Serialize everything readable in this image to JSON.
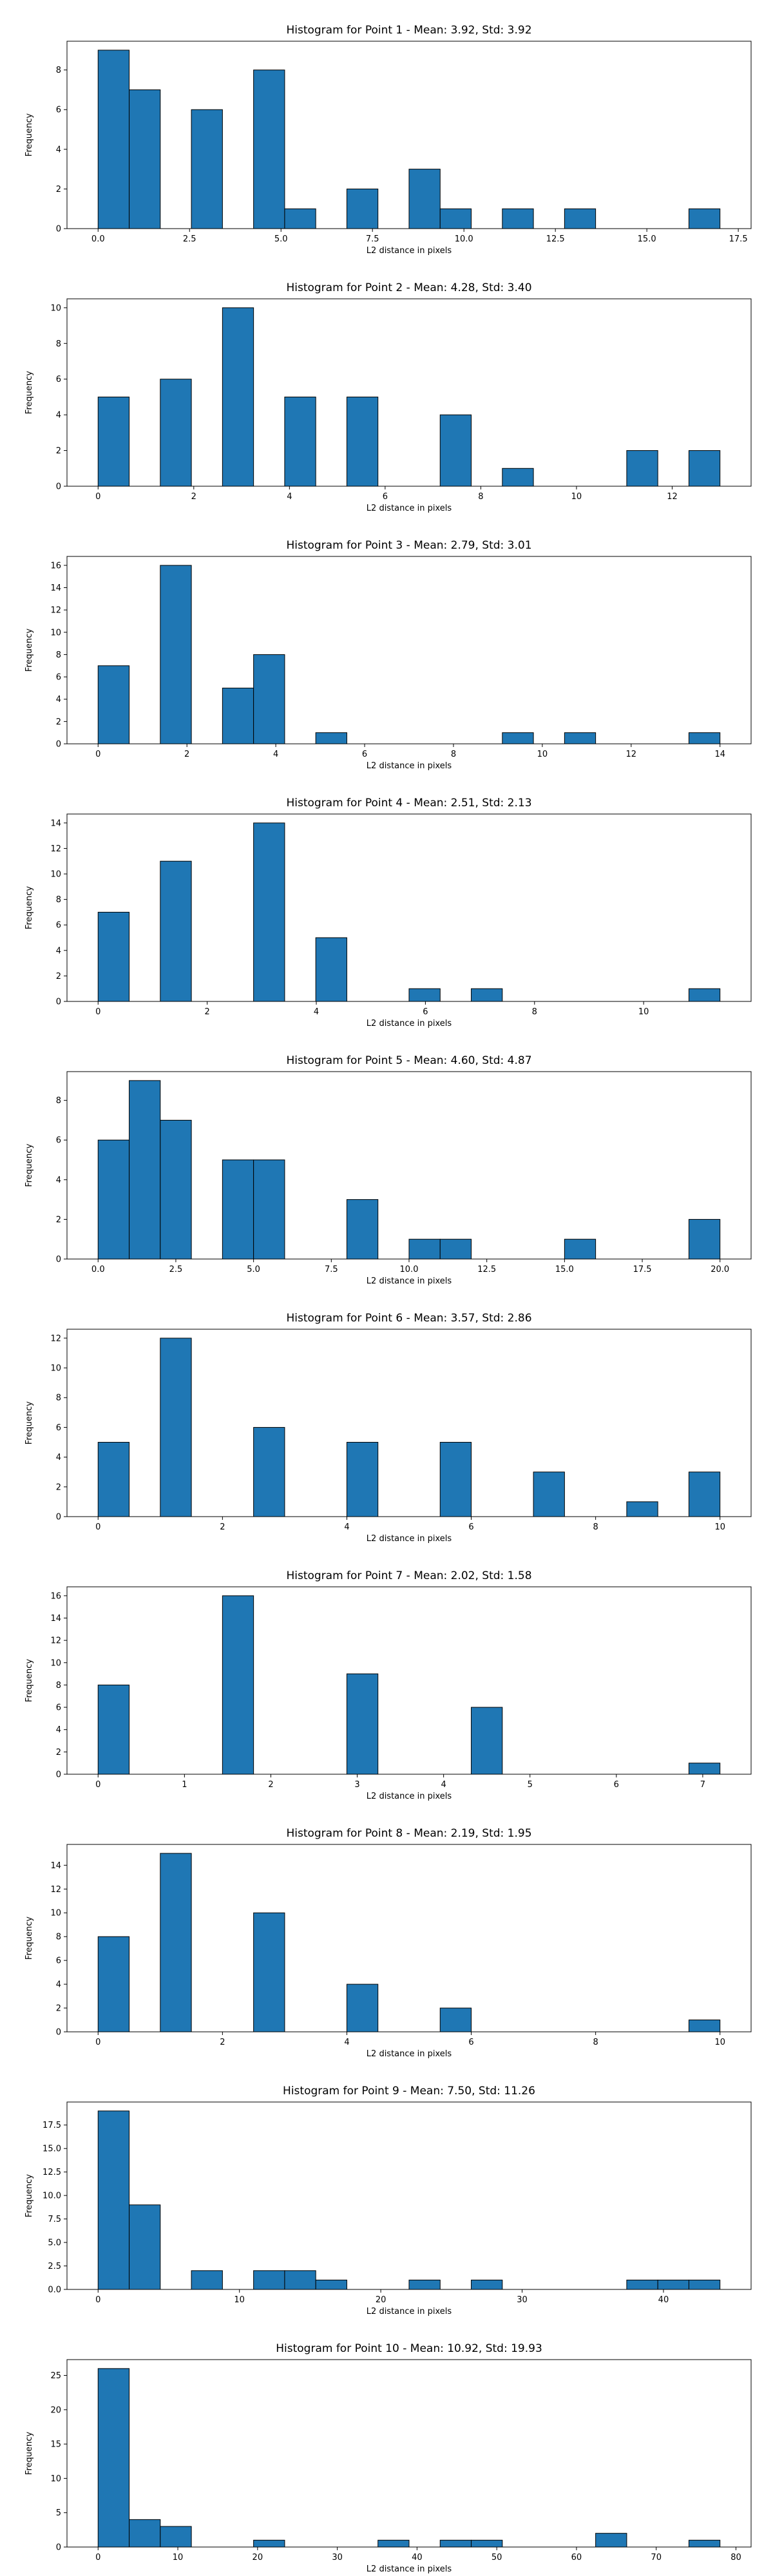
{
  "chart_data": [
    {
      "type": "bar",
      "title": "Histogram for Point 1 - Mean: 3.92, Std: 3.92",
      "xlabel": "L2 distance in pixels",
      "ylabel": "Frequency",
      "xlim": [
        -0.85,
        17.85
      ],
      "ylim": [
        0,
        9.45
      ],
      "xticks": [
        0.0,
        2.5,
        5.0,
        7.5,
        10.0,
        12.5,
        15.0,
        17.5
      ],
      "xtick_labels": [
        "0.0",
        "2.5",
        "5.0",
        "7.5",
        "10.0",
        "12.5",
        "15.0",
        "17.5"
      ],
      "yticks": [
        0,
        2,
        4,
        6,
        8
      ],
      "bins": [
        [
          0.0,
          0.85,
          9
        ],
        [
          0.85,
          1.7,
          7
        ],
        [
          1.7,
          2.55,
          0
        ],
        [
          2.55,
          3.4,
          6
        ],
        [
          3.4,
          4.25,
          0
        ],
        [
          4.25,
          5.1,
          8
        ],
        [
          5.1,
          5.95,
          1
        ],
        [
          5.95,
          6.8,
          0
        ],
        [
          6.8,
          7.65,
          2
        ],
        [
          7.65,
          8.5,
          0
        ],
        [
          8.5,
          9.35,
          3
        ],
        [
          9.35,
          10.2,
          1
        ],
        [
          10.2,
          11.05,
          0
        ],
        [
          11.05,
          11.9,
          1
        ],
        [
          11.9,
          12.75,
          0
        ],
        [
          12.75,
          13.6,
          1
        ],
        [
          13.6,
          14.45,
          0
        ],
        [
          14.45,
          15.3,
          0
        ],
        [
          15.3,
          16.15,
          0
        ],
        [
          16.15,
          17.0,
          1
        ]
      ]
    },
    {
      "type": "bar",
      "title": "Histogram for Point 2 - Mean: 4.28, Std: 3.40",
      "xlabel": "L2 distance in pixels",
      "ylabel": "Frequency",
      "xlim": [
        -0.65,
        13.65
      ],
      "ylim": [
        0,
        10.5
      ],
      "xticks": [
        0,
        2,
        4,
        6,
        8,
        10,
        12
      ],
      "xtick_labels": [
        "0",
        "2",
        "4",
        "6",
        "8",
        "10",
        "12"
      ],
      "yticks": [
        0,
        2,
        4,
        6,
        8,
        10
      ],
      "bins": [
        [
          0.0,
          0.65,
          5
        ],
        [
          0.65,
          1.3,
          0
        ],
        [
          1.3,
          1.95,
          6
        ],
        [
          1.95,
          2.6,
          0
        ],
        [
          2.6,
          3.25,
          10
        ],
        [
          3.25,
          3.9,
          0
        ],
        [
          3.9,
          4.55,
          5
        ],
        [
          4.55,
          5.2,
          0
        ],
        [
          5.2,
          5.85,
          5
        ],
        [
          5.85,
          6.5,
          0
        ],
        [
          6.5,
          7.15,
          0
        ],
        [
          7.15,
          7.8,
          4
        ],
        [
          7.8,
          8.45,
          0
        ],
        [
          8.45,
          9.1,
          1
        ],
        [
          9.1,
          9.75,
          0
        ],
        [
          9.75,
          10.4,
          0
        ],
        [
          10.4,
          11.05,
          0
        ],
        [
          11.05,
          11.7,
          2
        ],
        [
          11.7,
          12.35,
          0
        ],
        [
          12.35,
          13.0,
          2
        ]
      ]
    },
    {
      "type": "bar",
      "title": "Histogram for Point 3 - Mean: 2.79, Std: 3.01",
      "xlabel": "L2 distance in pixels",
      "ylabel": "Frequency",
      "xlim": [
        -0.7,
        14.7
      ],
      "ylim": [
        0,
        16.8
      ],
      "xticks": [
        0,
        2,
        4,
        6,
        8,
        10,
        12,
        14
      ],
      "xtick_labels": [
        "0",
        "2",
        "4",
        "6",
        "8",
        "10",
        "12",
        "14"
      ],
      "yticks": [
        0,
        2,
        4,
        6,
        8,
        10,
        12,
        14,
        16
      ],
      "bins": [
        [
          0.0,
          0.7,
          7
        ],
        [
          0.7,
          1.4,
          0
        ],
        [
          1.4,
          2.1,
          16
        ],
        [
          2.1,
          2.8,
          0
        ],
        [
          2.8,
          3.5,
          5
        ],
        [
          3.5,
          4.2,
          8
        ],
        [
          4.2,
          4.9,
          0
        ],
        [
          4.9,
          5.6,
          1
        ],
        [
          5.6,
          6.3,
          0
        ],
        [
          6.3,
          7.0,
          0
        ],
        [
          7.0,
          7.7,
          0
        ],
        [
          7.7,
          8.4,
          0
        ],
        [
          8.4,
          9.1,
          0
        ],
        [
          9.1,
          9.8,
          1
        ],
        [
          9.8,
          10.5,
          0
        ],
        [
          10.5,
          11.2,
          1
        ],
        [
          11.2,
          11.9,
          0
        ],
        [
          11.9,
          12.6,
          0
        ],
        [
          12.6,
          13.3,
          0
        ],
        [
          13.3,
          14.0,
          1
        ]
      ]
    },
    {
      "type": "bar",
      "title": "Histogram for Point 4 - Mean: 2.51, Std: 2.13",
      "xlabel": "L2 distance in pixels",
      "ylabel": "Frequency",
      "xlim": [
        -0.57,
        11.97
      ],
      "ylim": [
        0,
        14.7
      ],
      "xticks": [
        0,
        2,
        4,
        6,
        8,
        10
      ],
      "xtick_labels": [
        "0",
        "2",
        "4",
        "6",
        "8",
        "10"
      ],
      "yticks": [
        0,
        2,
        4,
        6,
        8,
        10,
        12,
        14
      ],
      "bins": [
        [
          0.0,
          0.57,
          7
        ],
        [
          0.57,
          1.14,
          0
        ],
        [
          1.14,
          1.71,
          11
        ],
        [
          1.71,
          2.28,
          0
        ],
        [
          2.28,
          2.85,
          0
        ],
        [
          2.85,
          3.42,
          14
        ],
        [
          3.42,
          3.99,
          0
        ],
        [
          3.99,
          4.56,
          5
        ],
        [
          4.56,
          5.13,
          0
        ],
        [
          5.13,
          5.7,
          0
        ],
        [
          5.7,
          6.27,
          1
        ],
        [
          6.27,
          6.84,
          0
        ],
        [
          6.84,
          7.41,
          1
        ],
        [
          7.41,
          7.98,
          0
        ],
        [
          7.98,
          8.55,
          0
        ],
        [
          8.55,
          9.12,
          0
        ],
        [
          9.12,
          9.69,
          0
        ],
        [
          9.69,
          10.26,
          0
        ],
        [
          10.26,
          10.83,
          0
        ],
        [
          10.83,
          11.4,
          1
        ]
      ]
    },
    {
      "type": "bar",
      "title": "Histogram for Point 5 - Mean: 4.60, Std: 4.87",
      "xlabel": "L2 distance in pixels",
      "ylabel": "Frequency",
      "xlim": [
        -1.0,
        21.0
      ],
      "ylim": [
        0,
        9.45
      ],
      "xticks": [
        0.0,
        2.5,
        5.0,
        7.5,
        10.0,
        12.5,
        15.0,
        17.5,
        20.0
      ],
      "xtick_labels": [
        "0.0",
        "2.5",
        "5.0",
        "7.5",
        "10.0",
        "12.5",
        "15.0",
        "17.5",
        "20.0"
      ],
      "yticks": [
        0,
        2,
        4,
        6,
        8
      ],
      "bins": [
        [
          0.0,
          1.0,
          6
        ],
        [
          1.0,
          2.0,
          9
        ],
        [
          2.0,
          3.0,
          7
        ],
        [
          3.0,
          4.0,
          0
        ],
        [
          4.0,
          5.0,
          5
        ],
        [
          5.0,
          6.0,
          5
        ],
        [
          6.0,
          7.0,
          0
        ],
        [
          7.0,
          8.0,
          0
        ],
        [
          8.0,
          9.0,
          3
        ],
        [
          9.0,
          10.0,
          0
        ],
        [
          10.0,
          11.0,
          1
        ],
        [
          11.0,
          12.0,
          1
        ],
        [
          12.0,
          13.0,
          0
        ],
        [
          13.0,
          14.0,
          0
        ],
        [
          14.0,
          15.0,
          0
        ],
        [
          15.0,
          16.0,
          1
        ],
        [
          16.0,
          17.0,
          0
        ],
        [
          17.0,
          18.0,
          0
        ],
        [
          18.0,
          19.0,
          0
        ],
        [
          19.0,
          20.0,
          2
        ]
      ]
    },
    {
      "type": "bar",
      "title": "Histogram for Point 6 - Mean: 3.57, Std: 2.86",
      "xlabel": "L2 distance in pixels",
      "ylabel": "Frequency",
      "xlim": [
        -0.5,
        10.5
      ],
      "ylim": [
        0,
        12.6
      ],
      "xticks": [
        0,
        2,
        4,
        6,
        8,
        10
      ],
      "xtick_labels": [
        "0",
        "2",
        "4",
        "6",
        "8",
        "10"
      ],
      "yticks": [
        0,
        2,
        4,
        6,
        8,
        10,
        12
      ],
      "bins": [
        [
          0.0,
          0.5,
          5
        ],
        [
          0.5,
          1.0,
          0
        ],
        [
          1.0,
          1.5,
          12
        ],
        [
          1.5,
          2.0,
          0
        ],
        [
          2.0,
          2.5,
          0
        ],
        [
          2.5,
          3.0,
          6
        ],
        [
          3.0,
          3.5,
          0
        ],
        [
          3.5,
          4.0,
          0
        ],
        [
          4.0,
          4.5,
          5
        ],
        [
          4.5,
          5.0,
          0
        ],
        [
          5.0,
          5.5,
          0
        ],
        [
          5.5,
          6.0,
          5
        ],
        [
          6.0,
          6.5,
          0
        ],
        [
          6.5,
          7.0,
          0
        ],
        [
          7.0,
          7.5,
          3
        ],
        [
          7.5,
          8.0,
          0
        ],
        [
          8.0,
          8.5,
          0
        ],
        [
          8.5,
          9.0,
          1
        ],
        [
          9.0,
          9.5,
          0
        ],
        [
          9.5,
          10.0,
          3
        ]
      ]
    },
    {
      "type": "bar",
      "title": "Histogram for Point 7 - Mean: 2.02, Std: 1.58",
      "xlabel": "L2 distance in pixels",
      "ylabel": "Frequency",
      "xlim": [
        -0.36,
        7.56
      ],
      "ylim": [
        0,
        16.8
      ],
      "xticks": [
        0,
        1,
        2,
        3,
        4,
        5,
        6,
        7
      ],
      "xtick_labels": [
        "0",
        "1",
        "2",
        "3",
        "4",
        "5",
        "6",
        "7"
      ],
      "yticks": [
        0,
        2,
        4,
        6,
        8,
        10,
        12,
        14,
        16
      ],
      "bins": [
        [
          0.0,
          0.36,
          8
        ],
        [
          0.36,
          0.72,
          0
        ],
        [
          0.72,
          1.08,
          0
        ],
        [
          1.08,
          1.44,
          0
        ],
        [
          1.44,
          1.8,
          16
        ],
        [
          1.8,
          2.16,
          0
        ],
        [
          2.16,
          2.52,
          0
        ],
        [
          2.52,
          2.88,
          0
        ],
        [
          2.88,
          3.24,
          9
        ],
        [
          3.24,
          3.6,
          0
        ],
        [
          3.6,
          3.96,
          0
        ],
        [
          3.96,
          4.32,
          0
        ],
        [
          4.32,
          4.68,
          6
        ],
        [
          4.68,
          5.04,
          0
        ],
        [
          5.04,
          5.4,
          0
        ],
        [
          5.4,
          5.76,
          0
        ],
        [
          5.76,
          6.12,
          0
        ],
        [
          6.12,
          6.48,
          0
        ],
        [
          6.48,
          6.84,
          0
        ],
        [
          6.84,
          7.2,
          1
        ]
      ]
    },
    {
      "type": "bar",
      "title": "Histogram for Point 8 - Mean: 2.19, Std: 1.95",
      "xlabel": "L2 distance in pixels",
      "ylabel": "Frequency",
      "xlim": [
        -0.5,
        10.5
      ],
      "ylim": [
        0,
        15.75
      ],
      "xticks": [
        0,
        2,
        4,
        6,
        8,
        10
      ],
      "xtick_labels": [
        "0",
        "2",
        "4",
        "6",
        "8",
        "10"
      ],
      "yticks": [
        0,
        2,
        4,
        6,
        8,
        10,
        12,
        14
      ],
      "bins": [
        [
          0.0,
          0.5,
          8
        ],
        [
          0.5,
          1.0,
          0
        ],
        [
          1.0,
          1.5,
          15
        ],
        [
          1.5,
          2.0,
          0
        ],
        [
          2.0,
          2.5,
          0
        ],
        [
          2.5,
          3.0,
          10
        ],
        [
          3.0,
          3.5,
          0
        ],
        [
          3.5,
          4.0,
          0
        ],
        [
          4.0,
          4.5,
          4
        ],
        [
          4.5,
          5.0,
          0
        ],
        [
          5.0,
          5.5,
          0
        ],
        [
          5.5,
          6.0,
          2
        ],
        [
          6.0,
          6.5,
          0
        ],
        [
          6.5,
          7.0,
          0
        ],
        [
          7.0,
          7.5,
          0
        ],
        [
          7.5,
          8.0,
          0
        ],
        [
          8.0,
          8.5,
          0
        ],
        [
          8.5,
          9.0,
          0
        ],
        [
          9.0,
          9.5,
          0
        ],
        [
          9.5,
          10.0,
          1
        ]
      ]
    },
    {
      "type": "bar",
      "title": "Histogram for Point 9 - Mean: 7.50, Std: 11.26",
      "xlabel": "L2 distance in pixels",
      "ylabel": "Frequency",
      "xlim": [
        -2.2,
        46.2
      ],
      "ylim": [
        0,
        19.95
      ],
      "xticks": [
        0,
        10,
        20,
        30,
        40
      ],
      "xtick_labels": [
        "0",
        "10",
        "20",
        "30",
        "40"
      ],
      "yticks": [
        0.0,
        2.5,
        5.0,
        7.5,
        10.0,
        12.5,
        15.0,
        17.5
      ],
      "ytick_labels": [
        "0.0",
        "2.5",
        "5.0",
        "7.5",
        "10.0",
        "12.5",
        "15.0",
        "17.5"
      ],
      "bins": [
        [
          0.0,
          2.2,
          19
        ],
        [
          2.2,
          4.4,
          9
        ],
        [
          4.4,
          6.6,
          0
        ],
        [
          6.6,
          8.8,
          2
        ],
        [
          8.8,
          11.0,
          0
        ],
        [
          11.0,
          13.2,
          2
        ],
        [
          13.2,
          15.4,
          2
        ],
        [
          15.4,
          17.6,
          1
        ],
        [
          17.6,
          19.8,
          0
        ],
        [
          19.8,
          22.0,
          0
        ],
        [
          22.0,
          24.2,
          1
        ],
        [
          24.2,
          26.4,
          0
        ],
        [
          26.4,
          28.6,
          1
        ],
        [
          28.6,
          30.8,
          0
        ],
        [
          30.8,
          33.0,
          0
        ],
        [
          33.0,
          35.2,
          0
        ],
        [
          35.2,
          37.4,
          0
        ],
        [
          37.4,
          39.6,
          1
        ],
        [
          39.6,
          41.8,
          1
        ],
        [
          41.8,
          44.0,
          1
        ]
      ]
    },
    {
      "type": "bar",
      "title": "Histogram for Point 10 - Mean: 10.92, Std: 19.93",
      "xlabel": "L2 distance in pixels",
      "ylabel": "Frequency",
      "xlim": [
        -3.9,
        81.9
      ],
      "ylim": [
        0,
        27.3
      ],
      "xticks": [
        0,
        10,
        20,
        30,
        40,
        50,
        60,
        70,
        80
      ],
      "xtick_labels": [
        "0",
        "10",
        "20",
        "30",
        "40",
        "50",
        "60",
        "70",
        "80"
      ],
      "yticks": [
        0,
        5,
        10,
        15,
        20,
        25
      ],
      "bins": [
        [
          0.0,
          3.9,
          26
        ],
        [
          3.9,
          7.8,
          4
        ],
        [
          7.8,
          11.7,
          3
        ],
        [
          11.7,
          15.6,
          0
        ],
        [
          15.6,
          19.5,
          0
        ],
        [
          19.5,
          23.4,
          1
        ],
        [
          23.4,
          27.3,
          0
        ],
        [
          27.3,
          31.2,
          0
        ],
        [
          31.2,
          35.1,
          0
        ],
        [
          35.1,
          39.0,
          1
        ],
        [
          39.0,
          42.9,
          0
        ],
        [
          42.9,
          46.8,
          1
        ],
        [
          46.8,
          50.7,
          1
        ],
        [
          50.7,
          54.6,
          0
        ],
        [
          54.6,
          58.5,
          0
        ],
        [
          58.5,
          62.4,
          0
        ],
        [
          62.4,
          66.3,
          2
        ],
        [
          66.3,
          70.2,
          0
        ],
        [
          70.2,
          74.1,
          0
        ],
        [
          74.1,
          78.0,
          1
        ]
      ]
    }
  ]
}
